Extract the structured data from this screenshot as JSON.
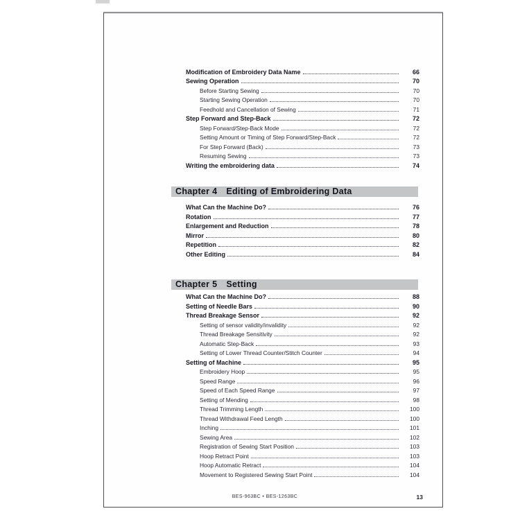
{
  "toc": {
    "chapter3_continued_entries": [
      {
        "label": "Modification of Embroidery Data Name",
        "page": "66",
        "level": 1
      },
      {
        "label": "Sewing Operation",
        "page": "70",
        "level": 1
      },
      {
        "label": "Before Starting Sewing",
        "page": "70",
        "level": 2
      },
      {
        "label": "Starting Sewing Operation",
        "page": "70",
        "level": 2
      },
      {
        "label": "Feedhold and Cancellation of Sewing",
        "page": "71",
        "level": 2
      },
      {
        "label": "Step Forward and Step-Back",
        "page": "72",
        "level": 1
      },
      {
        "label": "Step Forward/Step-Back Mode",
        "page": "72",
        "level": 2
      },
      {
        "label": "Setting Amount or Timing of Step Forward/Step-Back",
        "page": "72",
        "level": 2
      },
      {
        "label": "For Step Forward (Back)",
        "page": "73",
        "level": 2
      },
      {
        "label": "Resuming Sewing",
        "page": "73",
        "level": 2
      },
      {
        "label": "Writing the embroidering data",
        "page": "74",
        "level": 1
      }
    ],
    "chapter4": {
      "number": "Chapter 4",
      "title": "Editing of Embroidering Data",
      "entries": [
        {
          "label": "What Can the Machine Do?",
          "page": "76",
          "level": 1
        },
        {
          "label": "Rotation",
          "page": "77",
          "level": 1
        },
        {
          "label": "Enlargement and Reduction",
          "page": "78",
          "level": 1
        },
        {
          "label": "Mirror",
          "page": "80",
          "level": 1
        },
        {
          "label": "Repetition",
          "page": "82",
          "level": 1
        },
        {
          "label": "Other Editing",
          "page": "84",
          "level": 1
        }
      ]
    },
    "chapter5": {
      "number": "Chapter 5",
      "title": "Setting",
      "entries": [
        {
          "label": "What Can the Machine Do?",
          "page": "88",
          "level": 1
        },
        {
          "label": "Setting of Needle Bars",
          "page": "90",
          "level": 1
        },
        {
          "label": "Thread Breakage Sensor",
          "page": "92",
          "level": 1
        },
        {
          "label": "Setting of sensor validity/invalidity",
          "page": "92",
          "level": 2
        },
        {
          "label": "Thread Breakage Sensitivity",
          "page": "92",
          "level": 2
        },
        {
          "label": "Automatic Step-Back",
          "page": "93",
          "level": 2
        },
        {
          "label": "Setting of Lower Thread Counter/Stitch Counter",
          "page": "94",
          "level": 2
        },
        {
          "label": "Setting of Machine",
          "page": "95",
          "level": 1
        },
        {
          "label": "Embroidery Hoop",
          "page": "95",
          "level": 2
        },
        {
          "label": "Speed Range",
          "page": "96",
          "level": 2
        },
        {
          "label": "Speed of Each Speed Range",
          "page": "97",
          "level": 2
        },
        {
          "label": "Setting of Mending",
          "page": "98",
          "level": 2
        },
        {
          "label": "Thread Trimming Length",
          "page": "100",
          "level": 2
        },
        {
          "label": "Thread Withdrawal Feed Length",
          "page": "100",
          "level": 2
        },
        {
          "label": "Inching",
          "page": "101",
          "level": 2
        },
        {
          "label": "Sewing Area",
          "page": "102",
          "level": 2
        },
        {
          "label": "Registration of Sewing Start Position",
          "page": "103",
          "level": 2
        },
        {
          "label": "Hoop Retract Point",
          "page": "103",
          "level": 2
        },
        {
          "label": "Hoop Automatic Retract",
          "page": "104",
          "level": 2
        },
        {
          "label": "Movement to Registered Sewing Start Point",
          "page": "104",
          "level": 2
        }
      ]
    }
  },
  "footer": {
    "model": "BES-963BC • BES-1263BC",
    "page_number": "13"
  },
  "colors": {
    "chapter_bar_bg": "#c4c5c6",
    "text": "#191923",
    "page_border": "#4c4c52"
  }
}
